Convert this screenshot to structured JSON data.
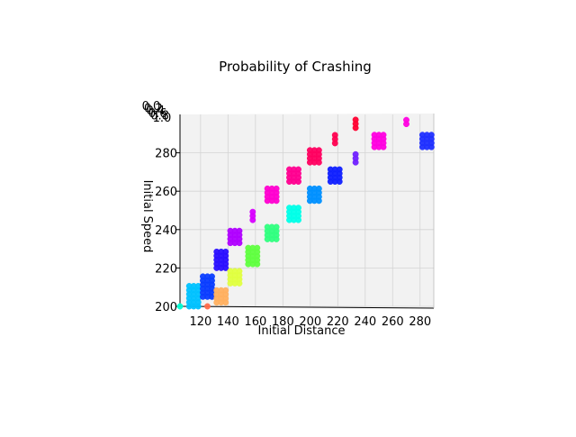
{
  "chart_data": {
    "type": "scatter",
    "projection": "3d",
    "title": "Probability of Crashing",
    "xlabel": "Initial Distance",
    "ylabel": "Initial Speed",
    "zlabel": "",
    "x_ticks": [
      "120",
      "140",
      "160",
      "180",
      "200",
      "220",
      "240",
      "260",
      "280"
    ],
    "y_ticks": [
      "200",
      "220",
      "240",
      "260",
      "280"
    ],
    "z_ticks": [
      "0.0",
      "0.2",
      "0.4",
      "0.6",
      "0.8",
      "1.0"
    ],
    "xlim": [
      105,
      290
    ],
    "ylim": [
      200,
      300
    ],
    "grid": true,
    "colormap": "hsv",
    "clusters": [
      {
        "x": 105,
        "y_min": 200,
        "y_max": 200,
        "color": "#00ffd5"
      },
      {
        "x": 115,
        "y_min": 200,
        "y_max": 210,
        "color": "#00c2ff"
      },
      {
        "x": 125,
        "y_min": 205,
        "y_max": 215,
        "color": "#0a3dff"
      },
      {
        "x": 125,
        "y_min": 200,
        "y_max": 200,
        "color": "#ff6b4a"
      },
      {
        "x": 135,
        "y_min": 220,
        "y_max": 228,
        "color": "#2a0fff"
      },
      {
        "x": 135,
        "y_min": 202,
        "y_max": 208,
        "color": "#ffb060"
      },
      {
        "x": 145,
        "y_min": 233,
        "y_max": 240,
        "color": "#b000ff"
      },
      {
        "x": 145,
        "y_min": 212,
        "y_max": 218,
        "color": "#e0ff40"
      },
      {
        "x": 158,
        "y_min": 245,
        "y_max": 250,
        "color": "#d800ff"
      },
      {
        "x": 158,
        "y_min": 222,
        "y_max": 230,
        "color": "#60ff40"
      },
      {
        "x": 172,
        "y_min": 255,
        "y_max": 262,
        "color": "#ff00d0"
      },
      {
        "x": 172,
        "y_min": 235,
        "y_max": 242,
        "color": "#30ff80"
      },
      {
        "x": 188,
        "y_min": 265,
        "y_max": 272,
        "color": "#ff0090"
      },
      {
        "x": 188,
        "y_min": 245,
        "y_max": 252,
        "color": "#00ffe8"
      },
      {
        "x": 203,
        "y_min": 275,
        "y_max": 282,
        "color": "#ff0060"
      },
      {
        "x": 203,
        "y_min": 255,
        "y_max": 262,
        "color": "#0090ff"
      },
      {
        "x": 218,
        "y_min": 285,
        "y_max": 290,
        "color": "#ff0050"
      },
      {
        "x": 218,
        "y_min": 265,
        "y_max": 272,
        "color": "#1020ff"
      },
      {
        "x": 233,
        "y_min": 293,
        "y_max": 298,
        "color": "#ff0030"
      },
      {
        "x": 233,
        "y_min": 275,
        "y_max": 280,
        "color": "#7020ff"
      },
      {
        "x": 250,
        "y_min": 283,
        "y_max": 290,
        "color": "#ff00e0"
      },
      {
        "x": 270,
        "y_min": 295,
        "y_max": 298,
        "color": "#ff00e0"
      },
      {
        "x": 285,
        "y_min": 283,
        "y_max": 290,
        "color": "#2030ff"
      }
    ]
  }
}
